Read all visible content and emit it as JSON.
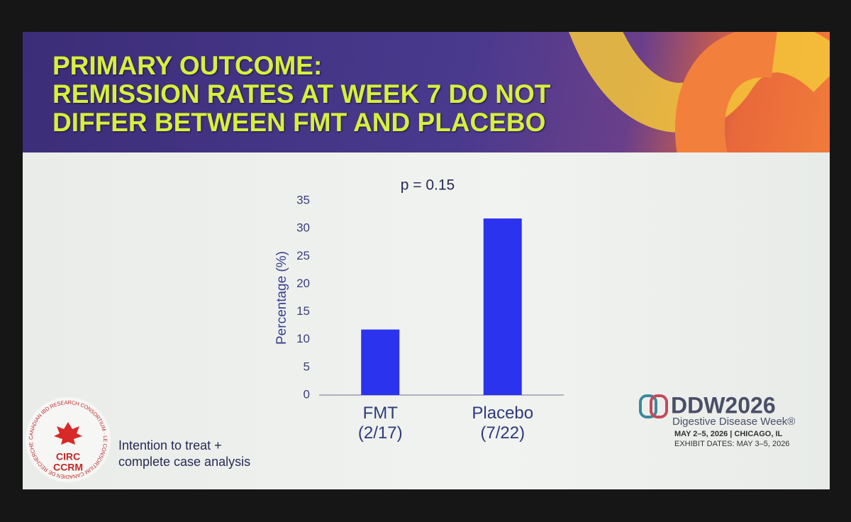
{
  "chart_data": {
    "type": "bar",
    "title": "PRIMARY OUTCOME:\nREMISSION RATES AT WEEK 7 DO NOT\nDIFFER BETWEEN FMT AND PLACEBO",
    "annotation": "p = 0.15",
    "y_label": "Percentage (%)",
    "categories": [
      "FMT\n(2/17)",
      "Placebo\n(7/22)"
    ],
    "values": [
      11.8,
      31.8
    ],
    "color": "#2b33ee",
    "ylim": [
      0,
      35
    ],
    "yticks": [
      0,
      5,
      10,
      15,
      20,
      25,
      30,
      35
    ],
    "grid": false,
    "footnote": "Intention to treat +\ncomplete case analysis"
  },
  "logos": {
    "circ_ring": "CANADIAN IBD RESEARCH CONSORTIUM · LE CONSORTIUM CANADIEN DE RECHERCHE SUR LES MII ·",
    "circ": "CIRC",
    "ccrm": "CCRM",
    "ddw": "DDW2026",
    "ddw_sub": "Digestive Disease Week®",
    "ddw_dates": "MAY 2–5, 2026 | CHICAGO, IL",
    "ddw_exhibit": "EXHIBIT DATES: MAY 3–5, 2026"
  }
}
